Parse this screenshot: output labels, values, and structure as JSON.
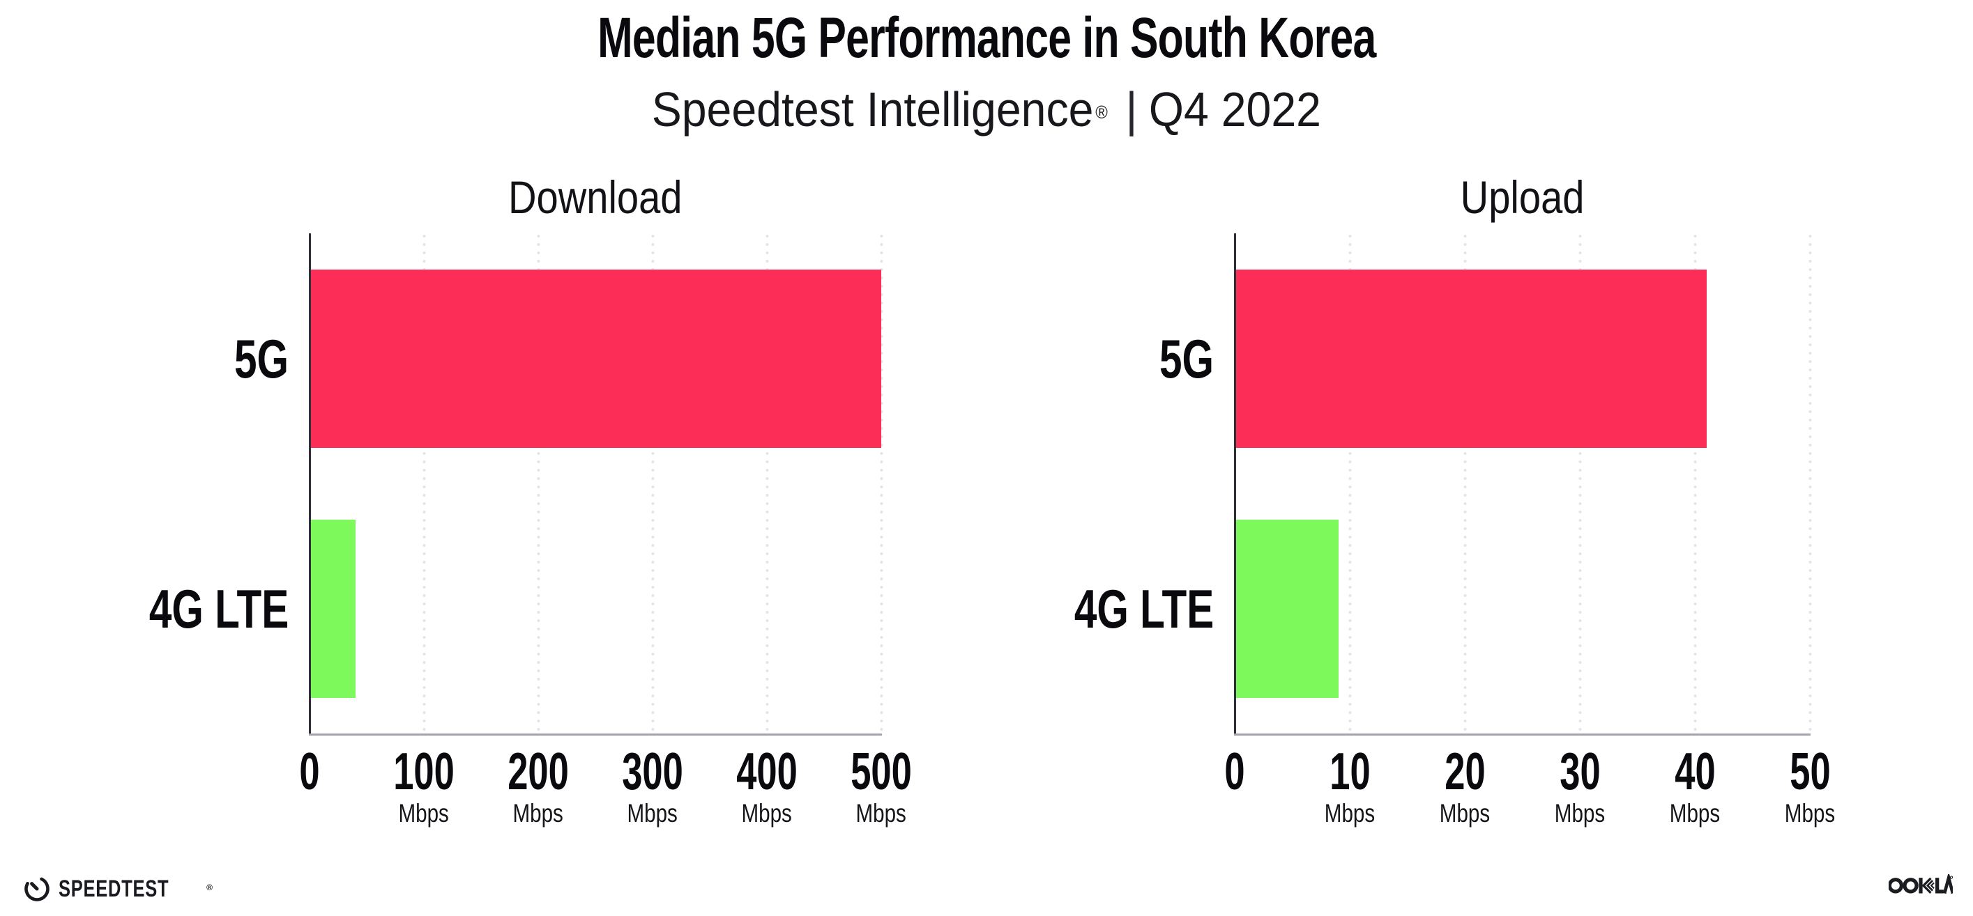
{
  "header": {
    "title": "Median 5G Performance in South Korea",
    "subtitle_brand": "Speedtest Intelligence",
    "subtitle_reg": "®",
    "subtitle_separator": "|",
    "subtitle_period": "Q4 2022"
  },
  "colors": {
    "bar_5g": "#FC2E57",
    "bar_4g_lte": "#7DF95C",
    "y_axis": "#2F2F3A",
    "x_axis": "#A3A3AC",
    "grid_dot": "#E3E3EC",
    "text": "#0A0A0E"
  },
  "chart_data": [
    {
      "type": "bar",
      "orientation": "horizontal",
      "title": "Download",
      "categories": [
        "5G",
        "4G LTE"
      ],
      "values": [
        500,
        40
      ],
      "bar_colors": [
        "#FC2E57",
        "#7DF95C"
      ],
      "unit": "Mbps",
      "xlim": [
        0,
        500
      ],
      "xticks": [
        0,
        100,
        200,
        300,
        400,
        500
      ],
      "grid": "vertical-dotted",
      "legend": "none"
    },
    {
      "type": "bar",
      "orientation": "horizontal",
      "title": "Upload",
      "categories": [
        "5G",
        "4G LTE"
      ],
      "values": [
        41,
        9
      ],
      "bar_colors": [
        "#FC2E57",
        "#7DF95C"
      ],
      "unit": "Mbps",
      "xlim": [
        0,
        50
      ],
      "xticks": [
        0,
        10,
        20,
        30,
        40,
        50
      ],
      "grid": "vertical-dotted",
      "legend": "none"
    }
  ],
  "footer": {
    "speedtest_wordmark": "SPEEDTEST",
    "speedtest_reg": "®",
    "speedtest_icon": "speedtest-gauge-icon",
    "ookla_wordmark": "OOKLA",
    "ookla_icon": "ookla-logo"
  }
}
